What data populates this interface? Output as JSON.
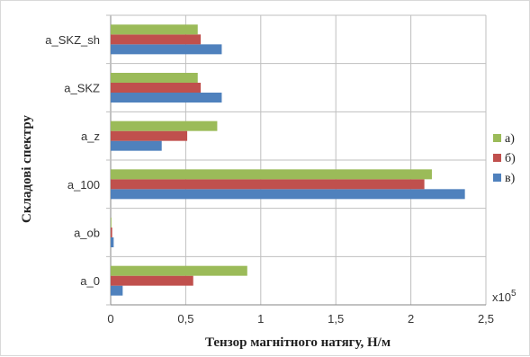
{
  "chart_data": {
    "type": "bar",
    "orientation": "horizontal",
    "title": "",
    "xlabel": "Тензор магнітного натягу, Н/м",
    "ylabel": "Складові спектру",
    "x_multiplier_label": "x10",
    "x_multiplier_exponent": "5",
    "xlim": [
      0,
      2.5
    ],
    "xticks": [
      "0",
      "0,5",
      "1",
      "1,5",
      "2",
      "2,5"
    ],
    "categories": [
      "a_0",
      "a_ob",
      "a_100",
      "a_z",
      "a_SKZ",
      "a_SKZ_sh"
    ],
    "series": [
      {
        "name": "в)",
        "color": "#4F81BD",
        "values": [
          0.08,
          0.02,
          2.36,
          0.34,
          0.74,
          0.74
        ]
      },
      {
        "name": "б)",
        "color": "#C0504D",
        "values": [
          0.55,
          0.01,
          2.09,
          0.51,
          0.6,
          0.6
        ]
      },
      {
        "name": "а)",
        "color": "#9BBB59",
        "values": [
          0.91,
          0.005,
          2.14,
          0.71,
          0.58,
          0.58
        ]
      }
    ],
    "legend_order": [
      "а)",
      "б)",
      "в)"
    ],
    "legend_position": "right",
    "grid": true
  }
}
